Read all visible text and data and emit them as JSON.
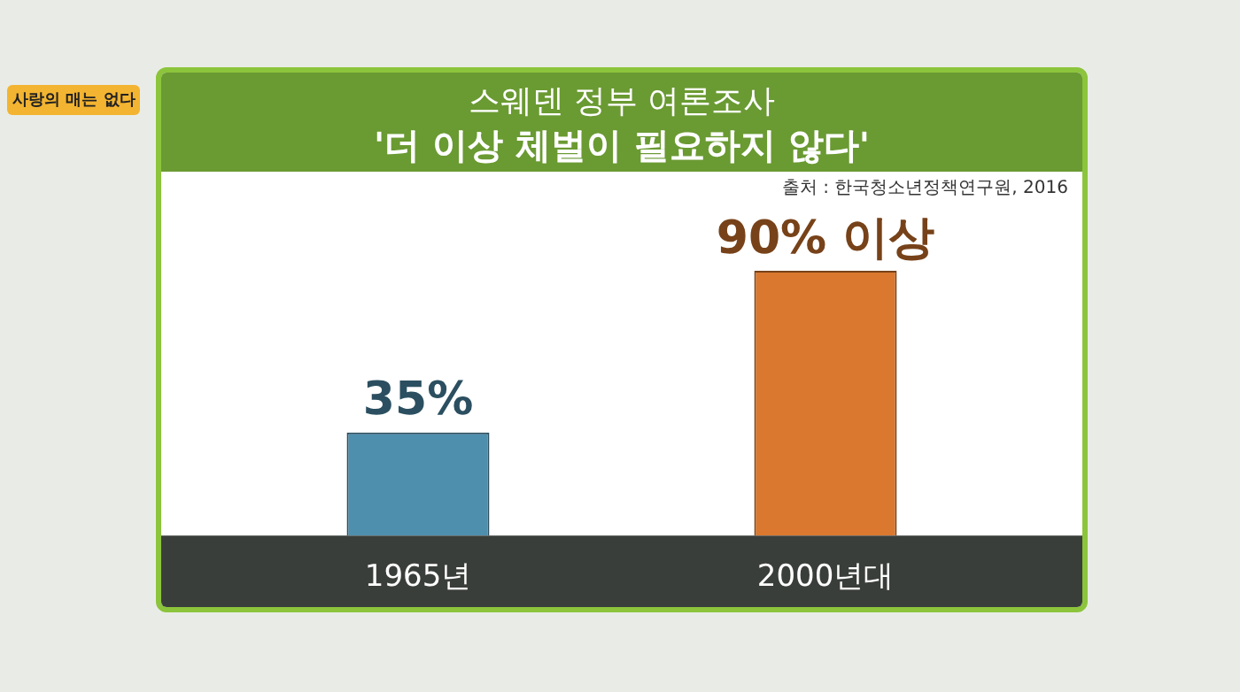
{
  "chart_data": {
    "type": "bar",
    "title": "스웨덴 정부 여론조사",
    "subtitle": "'더 이상 체벌이 필요하지 않다'",
    "categories": [
      "1965년",
      "2000년대"
    ],
    "values": [
      35,
      90
    ],
    "colors": [
      "#4f8fae",
      "#d9782e"
    ],
    "value_labels": [
      "35%",
      "90% 이상"
    ],
    "tick_labels": "x",
    "grid": false,
    "legend": false,
    "annotations": [
      "출처 : 한국청소년정책연구원, 2016",
      "사랑의 매는 없다"
    ]
  }
}
